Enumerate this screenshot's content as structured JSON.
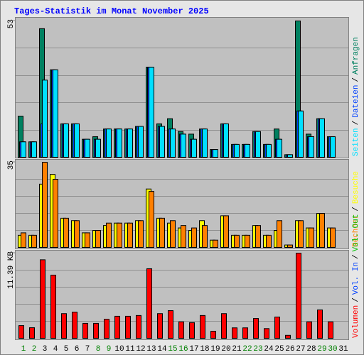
{
  "chart_data": [
    {
      "type": "bar",
      "title": "Tages-Statistik im Monat November 2025",
      "legend_separator": "/",
      "ylim": [
        0,
        53
      ],
      "yticks": [
        53
      ],
      "series": [
        {
          "name": "Anfragen",
          "color": "#008060",
          "values": [
            16,
            6,
            50,
            34,
            13,
            13,
            7,
            8,
            11,
            11,
            11,
            12,
            35,
            13,
            15,
            10,
            9,
            11,
            3,
            13,
            5,
            5,
            10,
            5,
            11,
            1,
            53,
            9,
            15,
            8,
            0
          ]
        },
        {
          "name": "Dateien",
          "color": "#0040ff",
          "values": [
            6,
            6,
            13,
            34,
            13,
            13,
            7,
            7,
            11,
            11,
            11,
            12,
            35,
            12,
            11,
            9,
            7,
            11,
            3,
            13,
            5,
            5,
            10,
            5,
            7,
            1,
            18,
            8,
            15,
            8,
            0
          ]
        },
        {
          "name": "Seiten",
          "color": "#00e0ff",
          "values": [
            6,
            6,
            30,
            34,
            13,
            13,
            7,
            7,
            11,
            11,
            11,
            12,
            35,
            12,
            11,
            9,
            7,
            11,
            3,
            13,
            5,
            5,
            10,
            5,
            7,
            1,
            18,
            8,
            15,
            8,
            0
          ]
        }
      ]
    },
    {
      "type": "bar",
      "ylim": [
        0,
        35
      ],
      "yticks": [
        35
      ],
      "series": [
        {
          "name": "Besuche",
          "color": "#ffff00",
          "values": [
            5,
            5,
            26,
            30,
            12,
            11,
            6,
            7,
            9,
            10,
            10,
            11,
            24,
            12,
            10,
            8,
            7,
            11,
            3,
            13,
            5,
            5,
            9,
            5,
            7,
            1,
            11,
            8,
            14,
            8,
            0
          ]
        },
        {
          "name": "Rechner",
          "color": "#ff8000",
          "values": [
            6,
            5,
            35,
            28,
            12,
            11,
            6,
            7,
            10,
            10,
            10,
            11,
            23,
            12,
            11,
            9,
            8,
            9,
            3,
            13,
            5,
            5,
            9,
            5,
            11,
            1,
            11,
            8,
            14,
            8,
            0
          ]
        }
      ]
    },
    {
      "type": "bar",
      "ylim": [
        0,
        11.39
      ],
      "yticks": [
        {
          "value": 11.39,
          "label": "11.39 KB"
        }
      ],
      "categories": [
        "1",
        "2",
        "3",
        "4",
        "5",
        "6",
        "7",
        "8",
        "9",
        "10",
        "11",
        "12",
        "13",
        "14",
        "15",
        "16",
        "17",
        "18",
        "19",
        "20",
        "21",
        "22",
        "23",
        "24",
        "25",
        "26",
        "27",
        "28",
        "29",
        "30",
        "31"
      ],
      "category_colors": [
        "#008000",
        "#008000",
        "#000000",
        "#000000",
        "#000000",
        "#000000",
        "#000000",
        "#008000",
        "#008000",
        "#000000",
        "#000000",
        "#000000",
        "#000000",
        "#000000",
        "#008000",
        "#008000",
        "#000000",
        "#000000",
        "#000000",
        "#000000",
        "#000000",
        "#008000",
        "#008000",
        "#000000",
        "#000000",
        "#000000",
        "#000000",
        "#000000",
        "#008000",
        "#008000",
        "#000000"
      ],
      "series": [
        {
          "name": "Vol. Out",
          "color": "#00c000",
          "values": [
            null,
            null,
            null,
            null,
            null,
            null,
            null,
            null,
            null,
            null,
            null,
            null,
            null,
            null,
            null,
            null,
            null,
            null,
            null,
            null,
            null,
            null,
            null,
            null,
            null,
            null,
            null,
            null,
            null,
            null,
            null
          ]
        },
        {
          "name": "Vol. In",
          "color": "#0040ff",
          "values": [
            null,
            null,
            null,
            null,
            null,
            null,
            null,
            null,
            null,
            null,
            null,
            null,
            null,
            null,
            null,
            null,
            null,
            null,
            null,
            null,
            null,
            null,
            null,
            null,
            null,
            null,
            null,
            null,
            null,
            null,
            null
          ]
        },
        {
          "name": "Volumen",
          "color": "#ff0000",
          "values": [
            1.7,
            1.42,
            10.5,
            8.45,
            3.3,
            3.5,
            2.0,
            2.0,
            2.55,
            2.95,
            2.95,
            3.05,
            9.3,
            3.3,
            3.7,
            2.2,
            2.1,
            3.05,
            0.95,
            3.3,
            1.4,
            1.4,
            2.65,
            1.3,
            2.85,
            0.4,
            11.39,
            2.2,
            3.8,
            2.2,
            null
          ]
        }
      ]
    }
  ]
}
